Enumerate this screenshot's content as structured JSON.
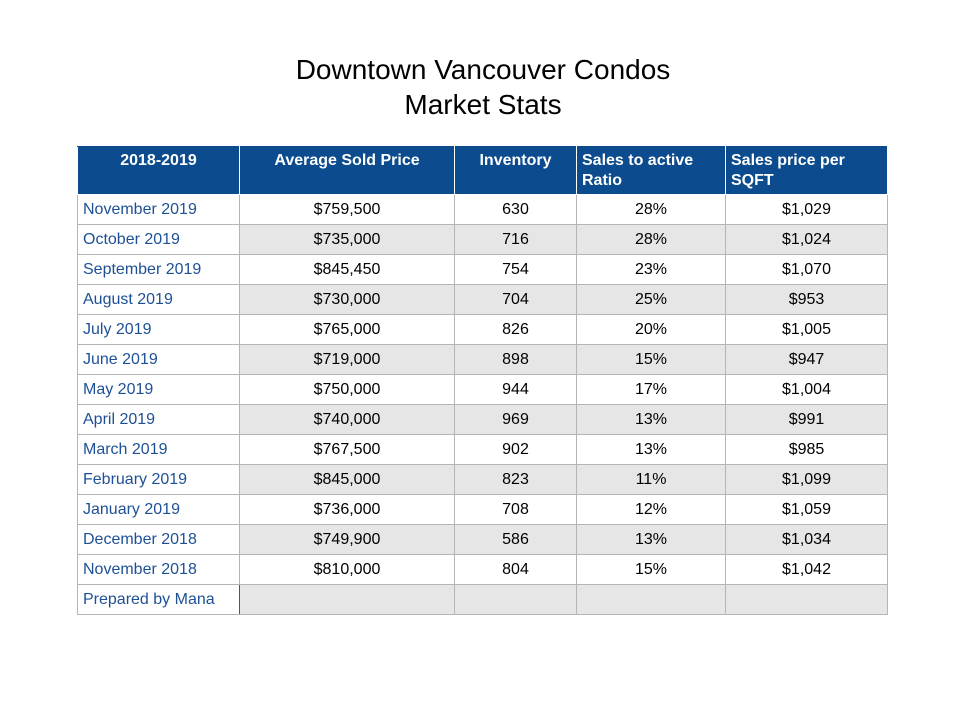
{
  "title": {
    "line1": "Downtown Vancouver Condos",
    "line2": "Market Stats"
  },
  "table": {
    "headers": {
      "period": "2018-2019",
      "avg_price": "Average Sold Price",
      "inventory": "Inventory",
      "ratio": "Sales to active Ratio",
      "sqft": "Sales price per SQFT"
    },
    "rows": [
      {
        "month": "November 2019",
        "avg_price": "$759,500",
        "inventory": "630",
        "ratio": "28%",
        "sqft": "$1,029"
      },
      {
        "month": "October 2019",
        "avg_price": "$735,000",
        "inventory": "716",
        "ratio": "28%",
        "sqft": "$1,024"
      },
      {
        "month": "September 2019",
        "avg_price": "$845,450",
        "inventory": "754",
        "ratio": "23%",
        "sqft": "$1,070"
      },
      {
        "month": "August 2019",
        "avg_price": "$730,000",
        "inventory": "704",
        "ratio": "25%",
        "sqft": "$953"
      },
      {
        "month": "July 2019",
        "avg_price": "$765,000",
        "inventory": "826",
        "ratio": "20%",
        "sqft": "$1,005"
      },
      {
        "month": "June 2019",
        "avg_price": "$719,000",
        "inventory": "898",
        "ratio": "15%",
        "sqft": "$947"
      },
      {
        "month": "May 2019",
        "avg_price": "$750,000",
        "inventory": "944",
        "ratio": "17%",
        "sqft": "$1,004"
      },
      {
        "month": "April 2019",
        "avg_price": "$740,000",
        "inventory": "969",
        "ratio": "13%",
        "sqft": "$991"
      },
      {
        "month": "March 2019",
        "avg_price": "$767,500",
        "inventory": "902",
        "ratio": "13%",
        "sqft": "$985"
      },
      {
        "month": "February 2019",
        "avg_price": "$845,000",
        "inventory": "823",
        "ratio": "11%",
        "sqft": "$1,099"
      },
      {
        "month": "January 2019",
        "avg_price": "$736,000",
        "inventory": "708",
        "ratio": "12%",
        "sqft": "$1,059"
      },
      {
        "month": "December 2018",
        "avg_price": "$749,900",
        "inventory": "586",
        "ratio": "13%",
        "sqft": "$1,034"
      },
      {
        "month": "November 2018",
        "avg_price": "$810,000",
        "inventory": "804",
        "ratio": "15%",
        "sqft": "$1,042"
      }
    ],
    "footer": "Prepared by Mana"
  }
}
